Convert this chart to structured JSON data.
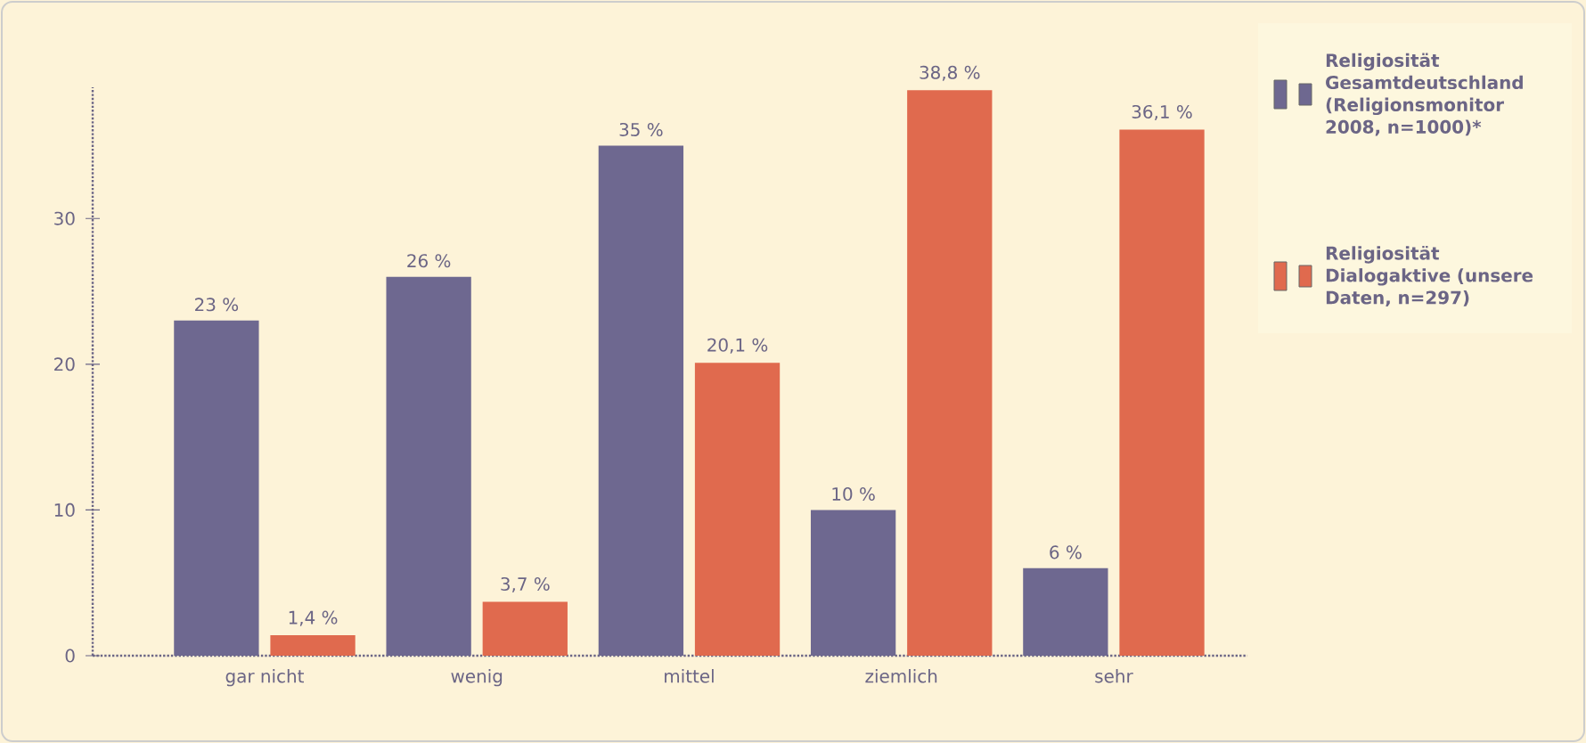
{
  "chart_data": {
    "type": "bar",
    "categories": [
      "gar nicht",
      "wenig",
      "mittel",
      "ziemlich",
      "sehr"
    ],
    "series": [
      {
        "name": "Religiosität Gesamtdeutschland (Religionsmonitor 2008, n=1000)*",
        "color": "#6e6890",
        "values": [
          23,
          26,
          35,
          10,
          6
        ],
        "value_labels": [
          "23 %",
          "26 %",
          "35 %",
          "10 %",
          "6 %"
        ]
      },
      {
        "name": "Religiosität Dialogaktive (unsere Daten, n=297)",
        "color": "#e06a4e",
        "values": [
          1.4,
          3.7,
          20.1,
          38.8,
          36.1
        ],
        "value_labels": [
          "1,4 %",
          "3,7 %",
          "20,1 %",
          "38,8 %",
          "36,1 %"
        ]
      }
    ],
    "ylim": [
      0,
      39
    ],
    "yticks": [
      0,
      10,
      20,
      30
    ],
    "grid": false,
    "legend": "right"
  }
}
